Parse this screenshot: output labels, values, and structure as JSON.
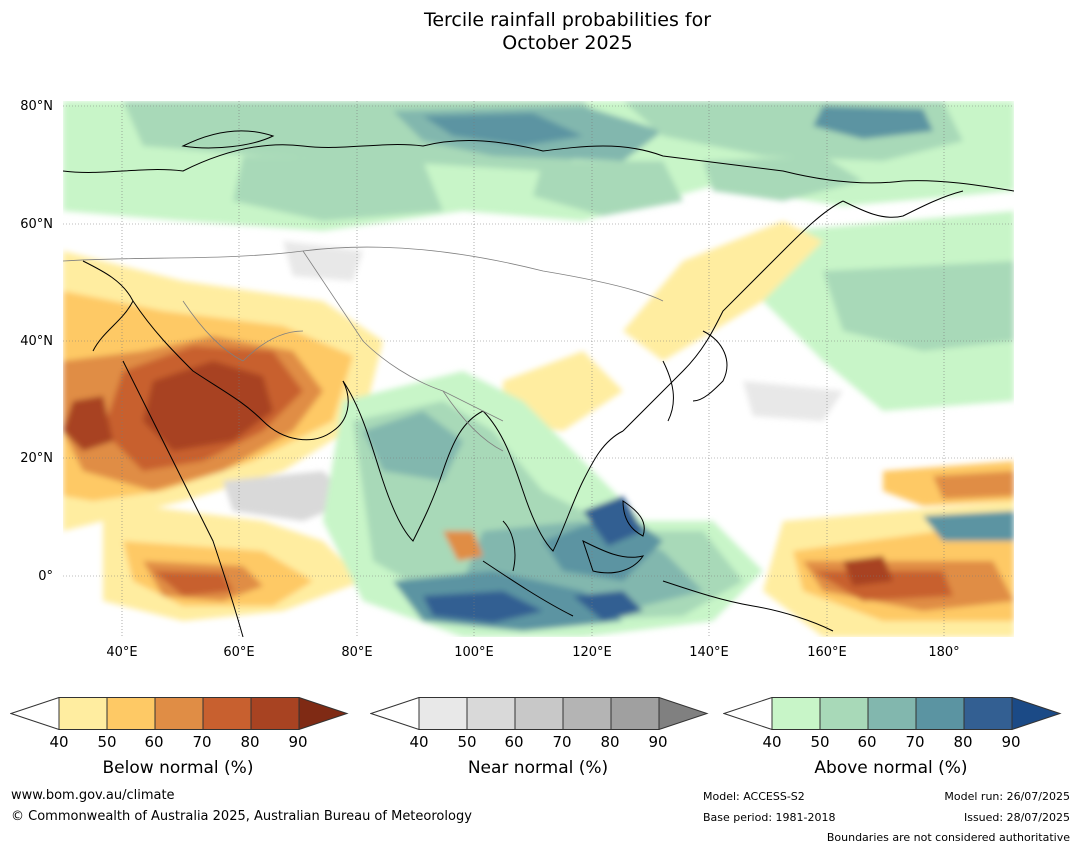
{
  "title": {
    "line1": "Tercile rainfall probabilities for",
    "line2": "October 2025"
  },
  "map": {
    "lat_labels": [
      "80°N",
      "60°N",
      "40°N",
      "20°N",
      "0°"
    ],
    "lon_labels": [
      "40°E",
      "60°E",
      "80°E",
      "100°E",
      "120°E",
      "140°E",
      "160°E",
      "180°"
    ],
    "colors": {
      "below": [
        "#ffeda0",
        "#fec965",
        "#e08d45",
        "#c8602f",
        "#a84322",
        "#7f2a14"
      ],
      "near": [
        "#e8e8e8",
        "#d9d9d9",
        "#c8c8c8",
        "#b4b4b4",
        "#a0a0a0",
        "#808080"
      ],
      "above": [
        "#c8f5c8",
        "#a8d9b8",
        "#82b7ae",
        "#5b94a2",
        "#335f92",
        "#1b4a86"
      ]
    }
  },
  "colorbars": [
    {
      "label": "Below normal (%)",
      "ticks": [
        "40",
        "50",
        "60",
        "70",
        "80",
        "90"
      ]
    },
    {
      "label": "Near normal (%)",
      "ticks": [
        "40",
        "50",
        "60",
        "70",
        "80",
        "90"
      ]
    },
    {
      "label": "Above normal (%)",
      "ticks": [
        "40",
        "50",
        "60",
        "70",
        "80",
        "90"
      ]
    }
  ],
  "footer": {
    "website": "www.bom.gov.au/climate",
    "copyright": "© Commonwealth of Australia 2025, Australian Bureau of Meteorology",
    "model": "Model: ACCESS-S2",
    "base_period": "Base period: 1981-2018",
    "model_run": "Model run: 26/07/2025",
    "issued": "Issued: 28/07/2025",
    "disclaimer": "Boundaries are not considered authoritative"
  }
}
